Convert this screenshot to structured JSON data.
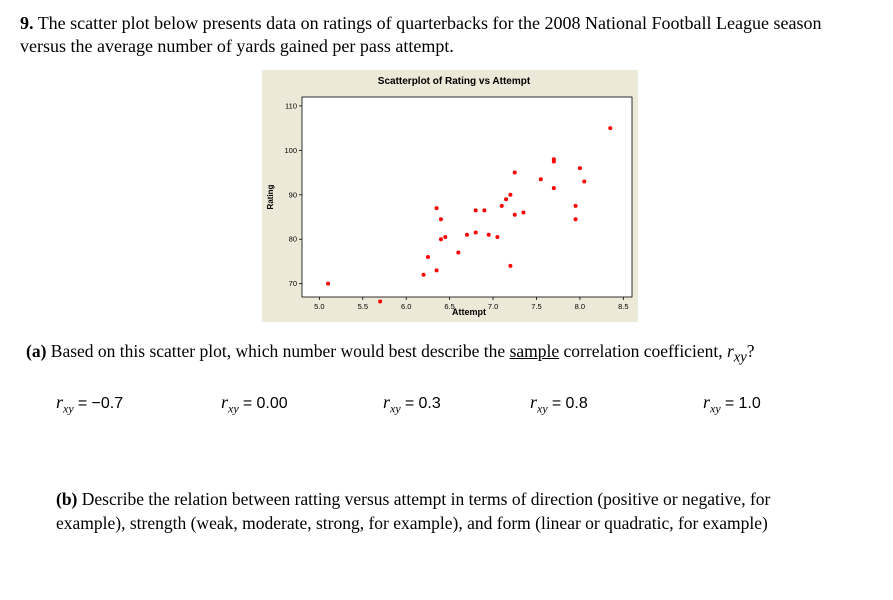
{
  "question": {
    "number": "9.",
    "line1": "The scatter plot below presents data on ratings of quarterbacks for the 2008 National Football League season",
    "line2": "versus the average number of yards gained per pass attempt."
  },
  "chart_data": {
    "type": "scatter",
    "title": "Scatterplot of Rating vs Attempt",
    "xlabel": "Attempt",
    "ylabel": "Rating",
    "xlim": [
      4.8,
      8.6
    ],
    "ylim": [
      67,
      112
    ],
    "xticks": [
      "5.0",
      "5.5",
      "6.0",
      "6.5",
      "7.0",
      "7.5",
      "8.0",
      "8.5"
    ],
    "xtick_values": [
      5.0,
      5.5,
      6.0,
      6.5,
      7.0,
      7.5,
      8.0,
      8.5
    ],
    "yticks": [
      "70",
      "80",
      "90",
      "100",
      "110"
    ],
    "ytick_values": [
      70,
      80,
      90,
      100,
      110
    ],
    "marker_color": "#ff0000",
    "points": [
      [
        5.1,
        70
      ],
      [
        5.7,
        66
      ],
      [
        6.2,
        72
      ],
      [
        6.25,
        76
      ],
      [
        6.35,
        73
      ],
      [
        6.35,
        87
      ],
      [
        6.4,
        84.5
      ],
      [
        6.4,
        80
      ],
      [
        6.45,
        80.5
      ],
      [
        6.6,
        77
      ],
      [
        6.7,
        81
      ],
      [
        6.8,
        81.5
      ],
      [
        6.8,
        86.5
      ],
      [
        6.9,
        86.5
      ],
      [
        6.95,
        81
      ],
      [
        7.05,
        80.5
      ],
      [
        7.1,
        87.5
      ],
      [
        7.15,
        89
      ],
      [
        7.2,
        90
      ],
      [
        7.2,
        74
      ],
      [
        7.25,
        85.5
      ],
      [
        7.25,
        95
      ],
      [
        7.35,
        86
      ],
      [
        7.55,
        93.5
      ],
      [
        7.7,
        97.5
      ],
      [
        7.7,
        98
      ],
      [
        7.7,
        91.5
      ],
      [
        7.95,
        87.5
      ],
      [
        7.95,
        84.5
      ],
      [
        8.0,
        96
      ],
      [
        8.05,
        93
      ],
      [
        8.35,
        105
      ]
    ]
  },
  "part_a": {
    "label": "(a)",
    "text_before": "Based on this scatter plot, which number would best describe the",
    "underlined": "sample",
    "text_after": "correlation coefficient,",
    "symbol": "r",
    "subscript": "xy",
    "qmark": "?"
  },
  "options": [
    {
      "symbol": "r",
      "sub": "xy",
      "eq": "=",
      "value": "−0.7"
    },
    {
      "symbol": "r",
      "sub": "xy",
      "eq": "=",
      "value": "0.00"
    },
    {
      "symbol": "r",
      "sub": "xy",
      "eq": "=",
      "value": "0.3"
    },
    {
      "symbol": "r",
      "sub": "xy",
      "eq": "=",
      "value": "0.8"
    },
    {
      "symbol": "r",
      "sub": "xy",
      "eq": "=",
      "value": "1.0"
    }
  ],
  "part_b": {
    "label": "(b)",
    "line1": "Describe the relation between ratting versus attempt in terms of direction (positive or negative, for",
    "line2": "example), strength (weak, moderate, strong, for example), and form (linear or quadratic, for example)"
  }
}
